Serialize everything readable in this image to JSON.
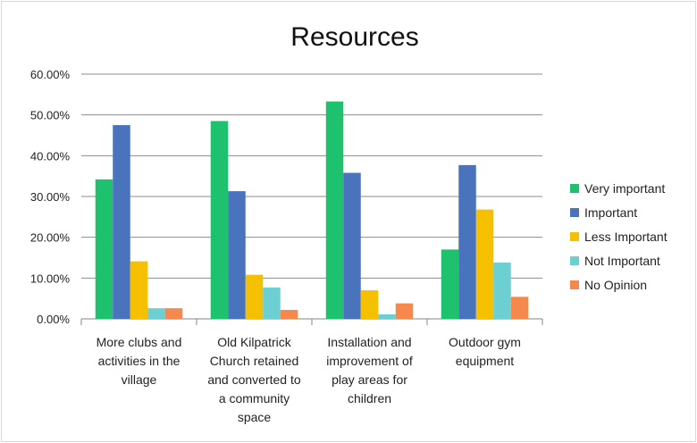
{
  "chart_data": {
    "type": "bar",
    "title": "Resources",
    "categories": [
      [
        "More clubs and",
        "activities in the",
        "village"
      ],
      [
        "Old Kilpatrick",
        "Church retained",
        "and converted to",
        "a community",
        "space"
      ],
      [
        "Installation and",
        "improvement of",
        "play areas for",
        "children"
      ],
      [
        "Outdoor gym",
        "equipment"
      ]
    ],
    "series": [
      {
        "name": "Very important",
        "color": "#1ec16d",
        "values": [
          34.2,
          48.5,
          53.3,
          17.0
        ]
      },
      {
        "name": "Important",
        "color": "#4a73bd",
        "values": [
          47.5,
          31.3,
          35.8,
          37.7
        ]
      },
      {
        "name": "Less Important",
        "color": "#f5c000",
        "values": [
          14.1,
          10.8,
          7.0,
          26.8
        ]
      },
      {
        "name": "Not Important",
        "color": "#6ccfd1",
        "values": [
          2.6,
          7.7,
          1.1,
          13.8
        ]
      },
      {
        "name": "No Opinion",
        "color": "#f5884d",
        "values": [
          2.6,
          2.2,
          3.8,
          5.4
        ]
      }
    ],
    "yticks": [
      "0.00%",
      "10.00%",
      "20.00%",
      "30.00%",
      "40.00%",
      "50.00%",
      "60.00%"
    ],
    "ylim": [
      0,
      60
    ],
    "legend_position": "right",
    "grid": true
  }
}
